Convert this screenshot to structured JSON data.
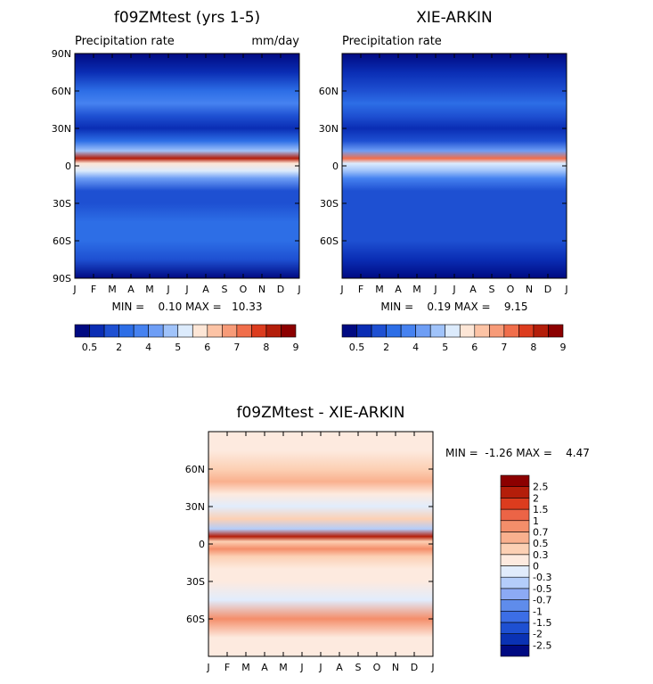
{
  "colors": {
    "precip_scale": [
      "#000a82",
      "#0a2db4",
      "#1e50d2",
      "#2d6ee6",
      "#4682f0",
      "#6e9ef5",
      "#a0c3fa",
      "#dcebfc",
      "#fde6d6",
      "#fcc3a5",
      "#f79b78",
      "#f06e4b",
      "#dc3c1e",
      "#b41e0a",
      "#8c0000"
    ],
    "diff_scale": [
      "#000a82",
      "#0a32b4",
      "#1e50d2",
      "#3c6ee6",
      "#5f8ceb",
      "#8caaf5",
      "#b4cdfa",
      "#e1ecfc",
      "#fdeadf",
      "#fcd0b4",
      "#f9b08e",
      "#f48e6a",
      "#ec6446",
      "#dc3c1e",
      "#b41e0a",
      "#8c0000"
    ]
  },
  "panels": {
    "model": {
      "title": "f09ZMtest (yrs 1-5)",
      "subtitle_left": "Precipitation rate",
      "subtitle_right": "mm/day",
      "stats": "MIN =    0.10 MAX =   10.33"
    },
    "obs": {
      "title": "XIE-ARKIN",
      "subtitle_left": "Precipitation rate",
      "stats": "MIN =    0.19 MAX =    9.15"
    },
    "diff": {
      "title": "f09ZMtest - XIE-ARKIN",
      "stats": "MIN =  -1.26 MAX =    4.47"
    }
  },
  "chart_data": [
    {
      "type": "heatmap",
      "title": "f09ZMtest (yrs 1-5)",
      "subtitle": "Precipitation rate",
      "units": "mm/day",
      "x": [
        "J",
        "F",
        "M",
        "A",
        "M",
        "J",
        "J",
        "A",
        "S",
        "O",
        "N",
        "D",
        "J"
      ],
      "y_ticks": [
        "90N",
        "60N",
        "30N",
        "0",
        "30S",
        "60S",
        "90S"
      ],
      "y_tick_values": [
        90,
        60,
        30,
        0,
        -30,
        -60,
        -90
      ],
      "colorbar_labels": [
        "0.5",
        "2",
        "4",
        "5",
        "6",
        "7",
        "8",
        "9"
      ],
      "min": 0.1,
      "max": 10.33,
      "zonal_profile_lat": [
        90,
        75,
        60,
        50,
        40,
        30,
        20,
        12,
        6,
        2,
        -4,
        -10,
        -20,
        -30,
        -45,
        -60,
        -75,
        -90
      ],
      "zonal_profile_mm_day": [
        0.3,
        0.8,
        2.5,
        3.0,
        2.0,
        1.2,
        2.4,
        4.5,
        9.5,
        6.0,
        5.0,
        3.5,
        1.8,
        1.5,
        2.5,
        2.2,
        1.5,
        0.3
      ]
    },
    {
      "type": "heatmap",
      "title": "XIE-ARKIN",
      "subtitle": "Precipitation rate",
      "x": [
        "J",
        "F",
        "M",
        "A",
        "M",
        "J",
        "J",
        "A",
        "S",
        "O",
        "N",
        "D",
        "J"
      ],
      "y_ticks": [
        "60N",
        "30N",
        "0",
        "30S",
        "60S"
      ],
      "y_tick_values": [
        60,
        30,
        0,
        -30,
        -60
      ],
      "colorbar_labels": [
        "0.5",
        "2",
        "4",
        "5",
        "6",
        "7",
        "8",
        "9"
      ],
      "min": 0.19,
      "max": 9.15,
      "zonal_profile_lat": [
        90,
        75,
        60,
        50,
        40,
        30,
        20,
        12,
        6,
        2,
        -4,
        -10,
        -20,
        -30,
        -45,
        -60,
        -75,
        -90
      ],
      "zonal_profile_mm_day": [
        0.3,
        0.8,
        2.0,
        2.5,
        2.0,
        1.0,
        1.5,
        4.0,
        8.0,
        5.5,
        4.5,
        3.0,
        1.5,
        1.5,
        2.0,
        1.5,
        1.0,
        0.3
      ]
    },
    {
      "type": "heatmap",
      "title": "f09ZMtest - XIE-ARKIN",
      "x": [
        "J",
        "F",
        "M",
        "A",
        "M",
        "J",
        "J",
        "A",
        "S",
        "O",
        "N",
        "D",
        "J"
      ],
      "y_ticks": [
        "60N",
        "30N",
        "0",
        "30S",
        "60S"
      ],
      "y_tick_values": [
        60,
        30,
        0,
        -30,
        -60
      ],
      "colorbar_labels": [
        "2.5",
        "2",
        "1.5",
        "1",
        "0.7",
        "0.5",
        "0.3",
        "0",
        "-0.3",
        "-0.5",
        "-0.7",
        "-1",
        "-1.5",
        "-2",
        "-2.5"
      ],
      "min": -1.26,
      "max": 4.47,
      "zonal_profile_lat": [
        90,
        75,
        60,
        50,
        40,
        30,
        20,
        12,
        6,
        2,
        -4,
        -10,
        -20,
        -30,
        -45,
        -60,
        -75,
        -90
      ],
      "zonal_profile_mm_day": [
        0.1,
        0.2,
        0.6,
        0.8,
        0.2,
        -0.2,
        0.5,
        -0.6,
        2.0,
        0.5,
        1.0,
        0.6,
        0.2,
        0.0,
        -0.3,
        1.0,
        0.2,
        0.1
      ]
    }
  ]
}
